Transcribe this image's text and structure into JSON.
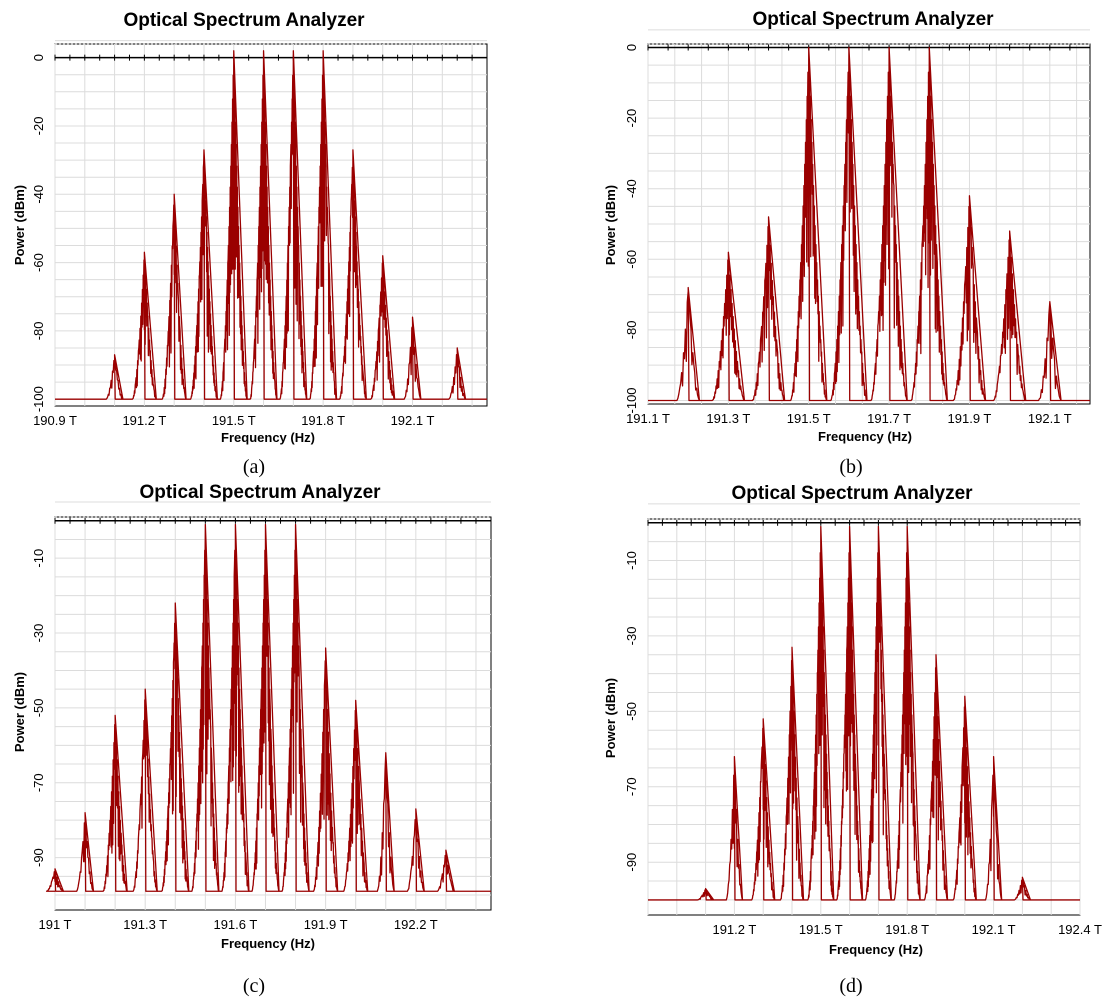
{
  "figure": {
    "panels": [
      {
        "caption": "(a)"
      },
      {
        "caption": "(b)"
      },
      {
        "caption": "(c)"
      },
      {
        "caption": "(d)"
      }
    ]
  },
  "colors": {
    "trace": "#9a0000",
    "grid": "#dcdcdc",
    "axis": "#000000"
  },
  "chart_data": [
    {
      "type": "line",
      "title": "Optical Spectrum Analyzer",
      "xlabel": "Frequency (Hz)",
      "ylabel": "Power (dBm)",
      "caption": "(a)",
      "x_unit": "THz",
      "xlim": [
        190.9,
        192.35
      ],
      "ylim": [
        -102,
        4
      ],
      "x_ticks": [
        190.9,
        191.2,
        191.5,
        191.8,
        192.1
      ],
      "x_tick_labels": [
        "190.9 T",
        "191.2 T",
        "191.5 T",
        "191.8 T",
        "192.1 T"
      ],
      "y_ticks": [
        0,
        -20,
        -40,
        -60,
        -80,
        -100
      ],
      "y_tick_labels": [
        "0",
        "-20",
        "-40",
        "-60",
        "-80",
        "-100"
      ],
      "grid": true,
      "floor_dbm": -100,
      "series": [
        {
          "values": [
            {
              "x": 191.1,
              "y": -87
            },
            {
              "x": 191.2,
              "y": -57
            },
            {
              "x": 191.3,
              "y": -40
            },
            {
              "x": 191.4,
              "y": -27
            },
            {
              "x": 191.5,
              "y": 2
            },
            {
              "x": 191.6,
              "y": 2
            },
            {
              "x": 191.7,
              "y": 2
            },
            {
              "x": 191.8,
              "y": 2
            },
            {
              "x": 191.9,
              "y": -27
            },
            {
              "x": 192.0,
              "y": -58
            },
            {
              "x": 192.1,
              "y": -76
            },
            {
              "x": 192.25,
              "y": -85
            }
          ]
        }
      ]
    },
    {
      "type": "line",
      "title": "Optical Spectrum Analyzer",
      "xlabel": "Frequency (Hz)",
      "ylabel": "Power (dBm)",
      "caption": "(b)",
      "x_unit": "THz",
      "xlim": [
        191.1,
        192.2
      ],
      "ylim": [
        -101,
        1
      ],
      "x_ticks": [
        191.1,
        191.3,
        191.5,
        191.7,
        191.9,
        192.1
      ],
      "x_tick_labels": [
        "191.1 T",
        "191.3 T",
        "191.5 T",
        "191.7 T",
        "191.9 T",
        "192.1 T"
      ],
      "y_ticks": [
        0,
        -20,
        -40,
        -60,
        -80,
        -100
      ],
      "y_tick_labels": [
        "0",
        "-20",
        "-40",
        "-60",
        "-80",
        "-100"
      ],
      "grid": true,
      "floor_dbm": -100,
      "series": [
        {
          "values": [
            {
              "x": 191.2,
              "y": -68
            },
            {
              "x": 191.3,
              "y": -58
            },
            {
              "x": 191.4,
              "y": -48
            },
            {
              "x": 191.5,
              "y": 0
            },
            {
              "x": 191.6,
              "y": 0
            },
            {
              "x": 191.7,
              "y": 0
            },
            {
              "x": 191.8,
              "y": 0
            },
            {
              "x": 191.9,
              "y": -42
            },
            {
              "x": 192.0,
              "y": -52
            },
            {
              "x": 192.1,
              "y": -72
            }
          ]
        }
      ]
    },
    {
      "type": "line",
      "title": "Optical Spectrum Analyzer",
      "xlabel": "Frequency (Hz)",
      "ylabel": "Power (dBm)",
      "caption": "(c)",
      "x_unit": "THz",
      "xlim": [
        191.0,
        192.45
      ],
      "ylim": [
        -104,
        1
      ],
      "x_ticks": [
        191.0,
        191.3,
        191.6,
        191.9,
        192.2
      ],
      "x_tick_labels": [
        "191 T",
        "191.3 T",
        "191.6 T",
        "191.9 T",
        "192.2 T"
      ],
      "y_ticks": [
        -10,
        -30,
        -50,
        -70,
        -90
      ],
      "y_tick_labels": [
        "-10",
        "-30",
        "-50",
        "-70",
        "-90"
      ],
      "grid": true,
      "floor_dbm": -99,
      "series": [
        {
          "values": [
            {
              "x": 191.0,
              "y": -93
            },
            {
              "x": 191.1,
              "y": -78
            },
            {
              "x": 191.2,
              "y": -52
            },
            {
              "x": 191.3,
              "y": -45
            },
            {
              "x": 191.4,
              "y": -22
            },
            {
              "x": 191.5,
              "y": -1
            },
            {
              "x": 191.6,
              "y": -1
            },
            {
              "x": 191.7,
              "y": -1
            },
            {
              "x": 191.8,
              "y": -1
            },
            {
              "x": 191.9,
              "y": -34
            },
            {
              "x": 192.0,
              "y": -48
            },
            {
              "x": 192.1,
              "y": -62
            },
            {
              "x": 192.2,
              "y": -77
            },
            {
              "x": 192.3,
              "y": -88
            }
          ]
        }
      ]
    },
    {
      "type": "line",
      "title": "Optical Spectrum Analyzer",
      "xlabel": "Frequency (Hz)",
      "ylabel": "Power (dBm)",
      "caption": "(d)",
      "x_unit": "THz",
      "xlim": [
        190.9,
        192.4
      ],
      "ylim": [
        -104,
        1
      ],
      "x_ticks": [
        191.2,
        191.5,
        191.8,
        192.1,
        192.4
      ],
      "x_tick_labels": [
        "191.2 T",
        "191.5 T",
        "191.8 T",
        "192.1 T",
        "192.4 T"
      ],
      "y_ticks": [
        -10,
        -30,
        -50,
        -70,
        -90
      ],
      "y_tick_labels": [
        "-10",
        "-30",
        "-50",
        "-70",
        "-90"
      ],
      "grid": true,
      "floor_dbm": -100,
      "series": [
        {
          "values": [
            {
              "x": 191.1,
              "y": -97
            },
            {
              "x": 191.2,
              "y": -62
            },
            {
              "x": 191.3,
              "y": -52
            },
            {
              "x": 191.4,
              "y": -33
            },
            {
              "x": 191.5,
              "y": -1
            },
            {
              "x": 191.6,
              "y": -1
            },
            {
              "x": 191.7,
              "y": -1
            },
            {
              "x": 191.8,
              "y": -1
            },
            {
              "x": 191.9,
              "y": -35
            },
            {
              "x": 192.0,
              "y": -46
            },
            {
              "x": 192.1,
              "y": -62
            },
            {
              "x": 192.2,
              "y": -94
            }
          ]
        }
      ]
    }
  ]
}
